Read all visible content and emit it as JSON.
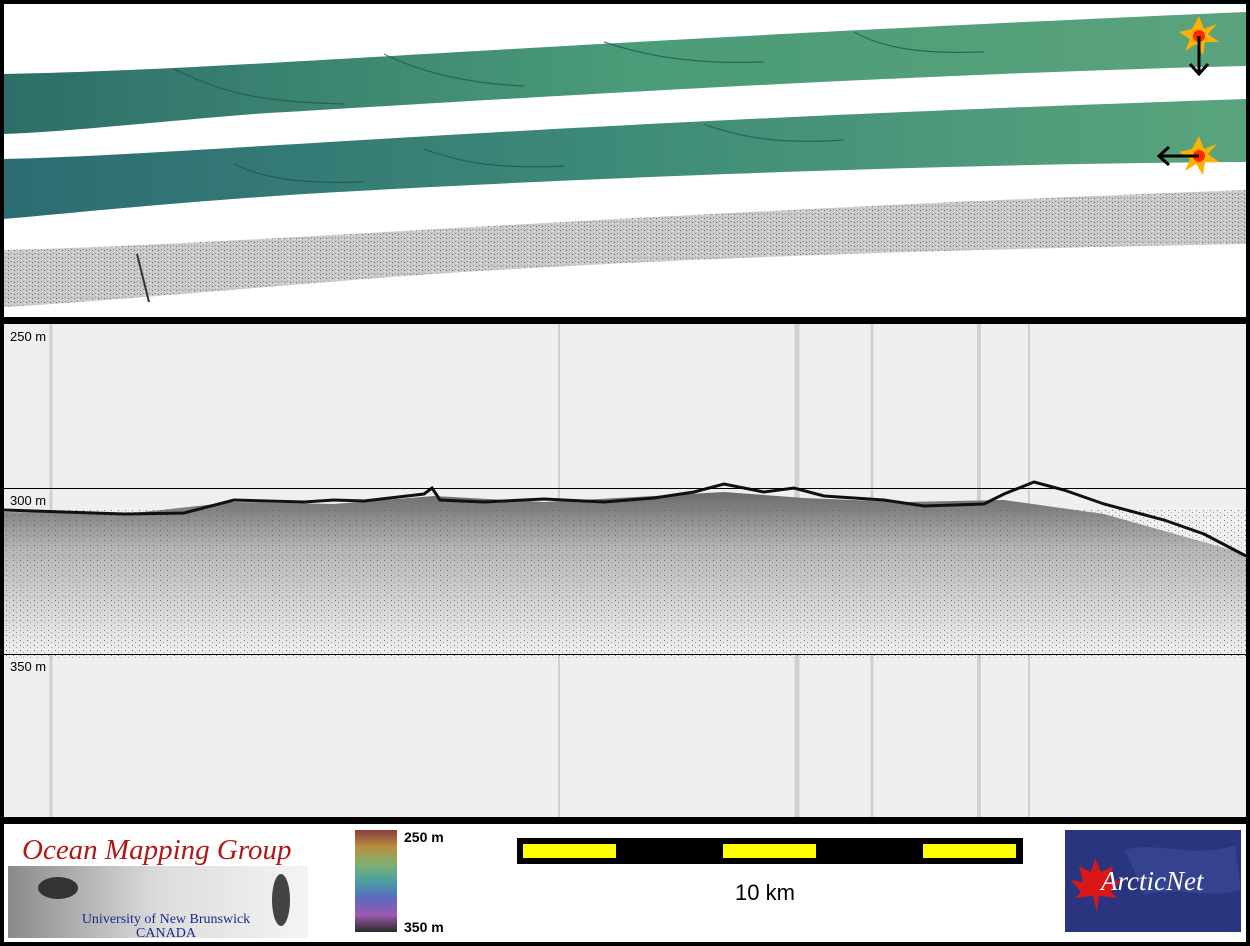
{
  "echogram": {
    "depth_labels": [
      "250 m",
      "300 m",
      "350 m"
    ]
  },
  "footer": {
    "org_title": "Ocean Mapping Group",
    "org_university": "University of New Brunswick",
    "org_country": "CANADA",
    "colorbar_top": "250 m",
    "colorbar_bottom": "350 m",
    "scale_label": "10 km",
    "partner_logo_text": "ArcticNet"
  },
  "colors": {
    "bathymetry": "#3f8f7c",
    "scale_yellow": "#ffff00",
    "og_red": "#b01818",
    "og_blue": "#1a2a8a",
    "arctic_bg": "#2a3580",
    "leaf_red": "#d81818"
  },
  "icons": [
    "sun-illumination-icon",
    "arrow-down-icon",
    "arrow-left-icon",
    "maple-leaf-icon"
  ]
}
